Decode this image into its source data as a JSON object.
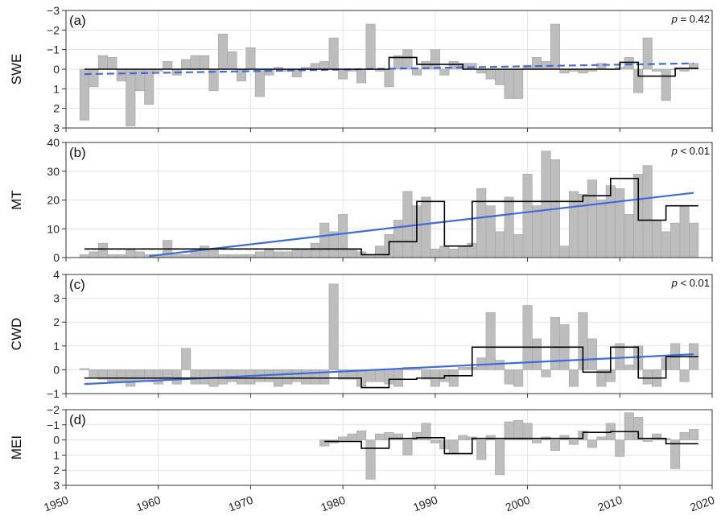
{
  "chart_data": [
    {
      "type": "bar",
      "panel_label": "(a)",
      "ylabel": "SWE",
      "annotation": "p = 0.42",
      "p_symbol": "p",
      "p_rest": " = 0.42",
      "ylim": [
        3,
        -3
      ],
      "inverted": true,
      "yticks": [
        -3,
        -2,
        -1,
        0,
        1,
        2,
        3
      ],
      "yticklabels": [
        "−3",
        "−2",
        "−1",
        "0",
        "1",
        "2",
        "3"
      ],
      "x": [
        1952,
        1953,
        1954,
        1955,
        1956,
        1957,
        1958,
        1959,
        1960,
        1961,
        1962,
        1963,
        1964,
        1965,
        1966,
        1967,
        1968,
        1969,
        1970,
        1971,
        1972,
        1973,
        1974,
        1975,
        1976,
        1977,
        1978,
        1979,
        1980,
        1981,
        1982,
        1983,
        1984,
        1985,
        1986,
        1987,
        1988,
        1989,
        1990,
        1991,
        1992,
        1993,
        1994,
        1995,
        1996,
        1997,
        1998,
        1999,
        2000,
        2001,
        2002,
        2003,
        2004,
        2005,
        2006,
        2007,
        2008,
        2009,
        2010,
        2011,
        2012,
        2013,
        2014,
        2015,
        2016,
        2017,
        2018
      ],
      "values": [
        2.6,
        0.9,
        -0.7,
        -0.6,
        0.6,
        2.9,
        1.1,
        1.8,
        0.1,
        -0.4,
        0.3,
        -0.5,
        -0.7,
        -0.7,
        1.1,
        -1.8,
        -0.9,
        0.6,
        -1.1,
        1.4,
        0.3,
        -0.1,
        0.1,
        0.4,
        -0.1,
        -0.3,
        -0.4,
        -1.6,
        0.5,
        0.1,
        0.7,
        -2.3,
        0.1,
        0.9,
        -0.7,
        -1.0,
        0.3,
        -0.4,
        -1.0,
        0.3,
        -0.4,
        -0.3,
        -0.3,
        0.2,
        0.5,
        0.8,
        1.5,
        1.5,
        -0.2,
        -0.6,
        -0.4,
        -2.3,
        0.2,
        0.1,
        0.2,
        0.1,
        -0.3,
        0.0,
        -0.1,
        -0.6,
        1.2,
        -1.6,
        0.1,
        1.6,
        0.0,
        0.1,
        -0.3
      ],
      "step": [
        [
          1952,
          0.0
        ],
        [
          1985,
          0.0
        ],
        [
          1985,
          -0.6
        ],
        [
          1988,
          -0.6
        ],
        [
          1988,
          -0.25
        ],
        [
          1993,
          -0.25
        ],
        [
          1993,
          0.0
        ],
        [
          2010,
          0.0
        ],
        [
          2010,
          -0.35
        ],
        [
          2012,
          -0.35
        ],
        [
          2012,
          0.35
        ],
        [
          2016,
          0.35
        ],
        [
          2016,
          -0.05
        ],
        [
          2018.5,
          -0.05
        ]
      ],
      "trend": {
        "x": [
          1952,
          2018
        ],
        "y": [
          0.25,
          -0.3
        ],
        "style": "dashed",
        "color": "#3d6bdc"
      },
      "pre_mean": null
    },
    {
      "type": "bar",
      "panel_label": "(b)",
      "ylabel": "MT",
      "annotation": "p < 0.01",
      "p_symbol": "p",
      "p_rest": " < 0.01",
      "ylim": [
        0,
        40
      ],
      "inverted": false,
      "yticks": [
        0,
        10,
        20,
        30,
        40
      ],
      "yticklabels": [
        "0",
        "10",
        "20",
        "30",
        "40"
      ],
      "x": [
        1952,
        1953,
        1954,
        1955,
        1956,
        1957,
        1958,
        1959,
        1960,
        1961,
        1962,
        1963,
        1964,
        1965,
        1966,
        1967,
        1968,
        1969,
        1970,
        1971,
        1972,
        1973,
        1974,
        1975,
        1976,
        1977,
        1978,
        1979,
        1980,
        1981,
        1982,
        1983,
        1984,
        1985,
        1986,
        1987,
        1988,
        1989,
        1990,
        1991,
        1992,
        1993,
        1994,
        1995,
        1996,
        1997,
        1998,
        1999,
        2000,
        2001,
        2002,
        2003,
        2004,
        2005,
        2006,
        2007,
        2008,
        2009,
        2010,
        2011,
        2012,
        2013,
        2014,
        2015,
        2016,
        2017,
        2018
      ],
      "values": [
        1,
        2,
        5,
        1,
        1,
        3,
        2,
        1,
        1,
        6,
        1,
        1,
        2,
        4,
        3,
        1,
        1,
        1,
        1,
        2,
        3,
        2,
        2,
        3,
        3,
        5,
        12,
        9,
        15,
        3,
        2,
        1,
        4,
        8,
        13,
        23,
        18,
        21,
        3,
        4,
        3,
        4,
        5,
        24,
        18,
        9,
        21,
        8,
        29,
        18,
        37,
        34,
        4,
        23,
        22,
        27,
        20,
        25,
        24,
        15,
        29,
        32,
        13,
        9,
        12,
        18,
        12
      ],
      "step": [
        [
          1952,
          3
        ],
        [
          1982,
          3
        ],
        [
          1982,
          1
        ],
        [
          1985,
          1
        ],
        [
          1985,
          5.5
        ],
        [
          1988,
          5.5
        ],
        [
          1988,
          19.5
        ],
        [
          1991,
          19.5
        ],
        [
          1991,
          4
        ],
        [
          1994,
          4
        ],
        [
          1994,
          19.5
        ],
        [
          2006,
          19.5
        ],
        [
          2006,
          21.5
        ],
        [
          2009,
          21.5
        ],
        [
          2009,
          27.5
        ],
        [
          2012,
          27.5
        ],
        [
          2012,
          13
        ],
        [
          2015,
          13
        ],
        [
          2015,
          18
        ],
        [
          2018.5,
          18
        ]
      ],
      "trend": {
        "x": [
          1959,
          2018
        ],
        "y": [
          0.5,
          22.5
        ],
        "style": "solid",
        "color": "#3d6bdc"
      },
      "pre_mean": {
        "x": [
          1952,
          1982
        ],
        "y": 3
      }
    },
    {
      "type": "bar",
      "panel_label": "(c)",
      "ylabel": "CWD",
      "annotation": "p < 0.01",
      "p_symbol": "p",
      "p_rest": " < 0.01",
      "ylim": [
        -1,
        4
      ],
      "inverted": false,
      "yticks": [
        -1,
        0,
        1,
        2,
        3,
        4
      ],
      "yticklabels": [
        "−1",
        "0",
        "1",
        "2",
        "3",
        "4"
      ],
      "x": [
        1952,
        1953,
        1954,
        1955,
        1956,
        1957,
        1958,
        1959,
        1960,
        1961,
        1962,
        1963,
        1964,
        1965,
        1966,
        1967,
        1968,
        1969,
        1970,
        1971,
        1972,
        1973,
        1974,
        1975,
        1976,
        1977,
        1978,
        1979,
        1980,
        1981,
        1982,
        1983,
        1984,
        1985,
        1986,
        1987,
        1988,
        1989,
        1990,
        1991,
        1992,
        1993,
        1994,
        1995,
        1996,
        1997,
        1998,
        1999,
        2000,
        2001,
        2002,
        2003,
        2004,
        2005,
        2006,
        2007,
        2008,
        2009,
        2010,
        2011,
        2012,
        2013,
        2014,
        2015,
        2016,
        2017,
        2018
      ],
      "values": [
        0.05,
        -0.3,
        -0.4,
        -0.5,
        -0.5,
        -0.7,
        -0.5,
        -0.5,
        -0.6,
        -0.4,
        -0.6,
        0.9,
        -0.6,
        -0.6,
        -0.7,
        -0.6,
        -0.5,
        -0.6,
        -0.6,
        -0.5,
        -0.5,
        -0.7,
        -0.6,
        -0.5,
        -0.6,
        -0.6,
        -0.6,
        3.6,
        -0.4,
        -0.4,
        -0.7,
        -0.5,
        -0.5,
        -0.6,
        -0.7,
        0.1,
        0.1,
        -0.4,
        -0.7,
        -0.5,
        -0.7,
        0.1,
        0.1,
        0.5,
        2.4,
        0.4,
        -0.6,
        -0.7,
        2.7,
        1.3,
        -0.3,
        2.2,
        1.9,
        -0.7,
        2.4,
        1.3,
        -0.7,
        -0.5,
        1.1,
        0.2,
        1.0,
        -0.6,
        -0.7,
        0.5,
        1.1,
        -0.5,
        1.1
      ],
      "step": [
        [
          1952,
          -0.35
        ],
        [
          1982,
          -0.35
        ],
        [
          1982,
          -0.75
        ],
        [
          1985,
          -0.75
        ],
        [
          1985,
          -0.4
        ],
        [
          1988,
          -0.4
        ],
        [
          1988,
          -0.35
        ],
        [
          1991,
          -0.35
        ],
        [
          1991,
          -0.25
        ],
        [
          1994,
          -0.25
        ],
        [
          1994,
          0.95
        ],
        [
          2006,
          0.95
        ],
        [
          2006,
          -0.1
        ],
        [
          2009,
          -0.1
        ],
        [
          2009,
          0.95
        ],
        [
          2012,
          0.95
        ],
        [
          2012,
          -0.35
        ],
        [
          2015,
          -0.35
        ],
        [
          2015,
          0.55
        ],
        [
          2018.5,
          0.55
        ]
      ],
      "trend": {
        "x": [
          1952,
          2018
        ],
        "y": [
          -0.6,
          0.65
        ],
        "style": "solid",
        "color": "#3d6bdc"
      },
      "pre_mean": {
        "x": [
          1952,
          1982
        ],
        "y": -0.35
      }
    },
    {
      "type": "bar",
      "panel_label": "(d)",
      "ylabel": "MEI",
      "annotation": "",
      "p_symbol": "",
      "p_rest": "",
      "ylim": [
        3,
        -2
      ],
      "inverted": true,
      "yticks": [
        -2,
        -1,
        0,
        1,
        2,
        3
      ],
      "yticklabels": [
        "−2",
        "−1",
        "0",
        "1",
        "2",
        "3"
      ],
      "x": [
        1978,
        1979,
        1980,
        1981,
        1982,
        1983,
        1984,
        1985,
        1986,
        1987,
        1988,
        1989,
        1990,
        1991,
        1992,
        1993,
        1994,
        1995,
        1996,
        1997,
        1998,
        1999,
        2000,
        2001,
        2002,
        2003,
        2004,
        2005,
        2006,
        2007,
        2008,
        2009,
        2010,
        2011,
        2012,
        2013,
        2014,
        2015,
        2016,
        2017,
        2018
      ],
      "values": [
        0.4,
        0.2,
        -0.2,
        -0.4,
        -0.6,
        2.6,
        -0.4,
        -0.5,
        -0.4,
        1.0,
        -0.5,
        -1.1,
        0.2,
        0.6,
        0.9,
        -0.3,
        -0.2,
        1.3,
        -0.3,
        2.3,
        -1.2,
        -1.3,
        -1.1,
        0.2,
        -0.2,
        0.7,
        -0.3,
        0.3,
        -0.6,
        0.5,
        -0.2,
        -1.1,
        1.1,
        -1.8,
        -1.5,
        0.1,
        -0.4,
        -0.1,
        1.9,
        -0.5,
        -0.7
      ],
      "step": [
        [
          1978,
          0.1
        ],
        [
          1982,
          0.1
        ],
        [
          1982,
          0.55
        ],
        [
          1985,
          0.55
        ],
        [
          1985,
          -0.1
        ],
        [
          1988,
          -0.1
        ],
        [
          1988,
          -0.15
        ],
        [
          1991,
          -0.15
        ],
        [
          1991,
          0.9
        ],
        [
          1994,
          0.9
        ],
        [
          1994,
          -0.1
        ],
        [
          2006,
          -0.1
        ],
        [
          2006,
          -0.5
        ],
        [
          2009,
          -0.5
        ],
        [
          2009,
          -0.55
        ],
        [
          2012,
          -0.55
        ],
        [
          2012,
          -0.1
        ],
        [
          2015,
          -0.1
        ],
        [
          2015,
          0.25
        ],
        [
          2018.5,
          0.25
        ]
      ],
      "trend": null,
      "pre_mean": null
    }
  ],
  "x_axis": {
    "range": [
      1950,
      2020
    ],
    "ticks": [
      1950,
      1960,
      1970,
      1980,
      1990,
      2000,
      2010,
      2020
    ],
    "ticklabels": [
      "1950",
      "1960",
      "1970",
      "1980",
      "1990",
      "2000",
      "2010",
      "2020"
    ],
    "label_rotation": "tilted"
  },
  "style": {
    "bar_color": "#bdbdbd",
    "bar_edge": "#a3a3a3",
    "step_color": "#000000",
    "pre_mean_color": "#000000",
    "grid": true,
    "grid_color": "#e3e3e3"
  }
}
